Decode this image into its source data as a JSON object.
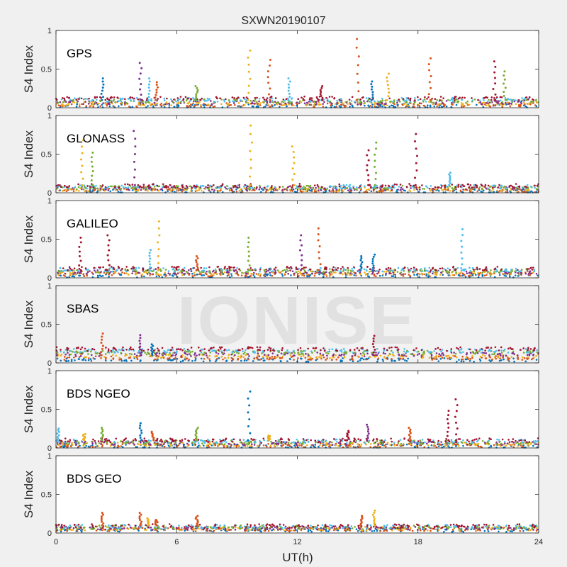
{
  "figure": {
    "title": "SXWN20190107",
    "xlabel": "UT(h)",
    "watermark": "IONISE",
    "background": "#f0f0f0",
    "axes_background": "#ffffff"
  },
  "chart_data": [
    {
      "type": "scatter",
      "label": "GPS",
      "ylabel": "S4 Index",
      "xlim": [
        0,
        24
      ],
      "ylim": [
        0,
        1
      ],
      "xticks": [
        0,
        6,
        12,
        18,
        24
      ],
      "xticklabels": [
        "",
        "",
        "",
        "",
        ""
      ],
      "yticks": [
        0,
        0.5,
        1
      ],
      "yticklabels": [
        "0",
        "0.5",
        "1"
      ],
      "grid": false,
      "baseline": [
        0.02,
        0.12
      ],
      "spikes": [
        {
          "x": 2.3,
          "y": 0.38,
          "color": "#0072bd"
        },
        {
          "x": 4.2,
          "y": 0.58,
          "color": "#7e2f8e"
        },
        {
          "x": 4.6,
          "y": 0.38,
          "color": "#4dbeee"
        },
        {
          "x": 5.0,
          "y": 0.33,
          "color": "#d95319"
        },
        {
          "x": 7.0,
          "y": 0.28,
          "color": "#77ac30"
        },
        {
          "x": 9.6,
          "y": 0.74,
          "color": "#edb120"
        },
        {
          "x": 10.6,
          "y": 0.62,
          "color": "#d95319"
        },
        {
          "x": 11.6,
          "y": 0.38,
          "color": "#4dbeee"
        },
        {
          "x": 13.2,
          "y": 0.28,
          "color": "#a2142f"
        },
        {
          "x": 15.0,
          "y": 0.89,
          "color": "#d95319"
        },
        {
          "x": 15.7,
          "y": 0.34,
          "color": "#0072bd"
        },
        {
          "x": 16.5,
          "y": 0.44,
          "color": "#edb120"
        },
        {
          "x": 18.6,
          "y": 0.64,
          "color": "#d95319"
        },
        {
          "x": 21.8,
          "y": 0.6,
          "color": "#a2142f"
        },
        {
          "x": 22.3,
          "y": 0.47,
          "color": "#77ac30"
        }
      ]
    },
    {
      "type": "scatter",
      "label": "GLONASS",
      "ylabel": "S4 Index",
      "xlim": [
        0,
        24
      ],
      "ylim": [
        0,
        1
      ],
      "xticks": [
        0,
        6,
        12,
        18,
        24
      ],
      "xticklabels": [
        "",
        "",
        "",
        "",
        ""
      ],
      "yticks": [
        0,
        0.5,
        1
      ],
      "yticklabels": [
        "0",
        "0.5",
        "1"
      ],
      "grid": false,
      "baseline": [
        0.02,
        0.09
      ],
      "spikes": [
        {
          "x": 1.3,
          "y": 0.68,
          "color": "#edb120"
        },
        {
          "x": 1.8,
          "y": 0.52,
          "color": "#77ac30"
        },
        {
          "x": 3.9,
          "y": 0.8,
          "color": "#7e2f8e"
        },
        {
          "x": 9.7,
          "y": 0.87,
          "color": "#edb120"
        },
        {
          "x": 11.8,
          "y": 0.6,
          "color": "#edb120"
        },
        {
          "x": 15.5,
          "y": 0.55,
          "color": "#a2142f"
        },
        {
          "x": 15.9,
          "y": 0.65,
          "color": "#77ac30"
        },
        {
          "x": 17.9,
          "y": 0.76,
          "color": "#a2142f"
        },
        {
          "x": 19.6,
          "y": 0.26,
          "color": "#4dbeee"
        }
      ]
    },
    {
      "type": "scatter",
      "label": "GALILEO",
      "ylabel": "S4 Index",
      "xlim": [
        0,
        24
      ],
      "ylim": [
        0,
        1
      ],
      "xticks": [
        0,
        6,
        12,
        18,
        24
      ],
      "xticklabels": [
        "",
        "",
        "",
        "",
        ""
      ],
      "yticks": [
        0,
        0.5,
        1
      ],
      "yticklabels": [
        "0",
        "0.5",
        "1"
      ],
      "grid": false,
      "baseline": [
        0.03,
        0.12
      ],
      "spikes": [
        {
          "x": 1.2,
          "y": 0.52,
          "color": "#a2142f"
        },
        {
          "x": 2.6,
          "y": 0.55,
          "color": "#a2142f"
        },
        {
          "x": 4.7,
          "y": 0.36,
          "color": "#4dbeee"
        },
        {
          "x": 5.1,
          "y": 0.73,
          "color": "#edb120"
        },
        {
          "x": 7.0,
          "y": 0.28,
          "color": "#d95319"
        },
        {
          "x": 9.6,
          "y": 0.52,
          "color": "#77ac30"
        },
        {
          "x": 12.2,
          "y": 0.55,
          "color": "#7e2f8e"
        },
        {
          "x": 13.1,
          "y": 0.64,
          "color": "#d95319"
        },
        {
          "x": 15.2,
          "y": 0.28,
          "color": "#0072bd"
        },
        {
          "x": 15.8,
          "y": 0.3,
          "color": "#0072bd"
        },
        {
          "x": 20.2,
          "y": 0.63,
          "color": "#4dbeee"
        }
      ]
    },
    {
      "type": "scatter",
      "label": "SBAS",
      "ylabel": "S4 Index",
      "xlim": [
        0,
        24
      ],
      "ylim": [
        0,
        1
      ],
      "xticks": [
        0,
        6,
        12,
        18,
        24
      ],
      "xticklabels": [
        "",
        "",
        "",
        "",
        ""
      ],
      "yticks": [
        0,
        0.5,
        1
      ],
      "yticklabels": [
        "0",
        "0.5",
        "1"
      ],
      "grid": false,
      "baseline": [
        0.04,
        0.18
      ],
      "spikes": [
        {
          "x": 2.3,
          "y": 0.38,
          "color": "#d95319"
        },
        {
          "x": 4.2,
          "y": 0.36,
          "color": "#7e2f8e"
        },
        {
          "x": 4.8,
          "y": 0.24,
          "color": "#0072bd"
        },
        {
          "x": 15.8,
          "y": 0.35,
          "color": "#a2142f"
        }
      ]
    },
    {
      "type": "scatter",
      "label": "BDS NGEO",
      "ylabel": "S4 Index",
      "xlim": [
        0,
        24
      ],
      "ylim": [
        0,
        1
      ],
      "xticks": [
        0,
        6,
        12,
        18,
        24
      ],
      "xticklabels": [
        "",
        "",
        "",
        "",
        ""
      ],
      "yticks": [
        0,
        0.5,
        1
      ],
      "yticklabels": [
        "0",
        "0.5",
        "1"
      ],
      "grid": false,
      "baseline": [
        0.02,
        0.1
      ],
      "spikes": [
        {
          "x": 0.1,
          "y": 0.25,
          "color": "#4dbeee"
        },
        {
          "x": 1.4,
          "y": 0.18,
          "color": "#edb120"
        },
        {
          "x": 2.3,
          "y": 0.26,
          "color": "#77ac30"
        },
        {
          "x": 4.2,
          "y": 0.32,
          "color": "#0072bd"
        },
        {
          "x": 4.8,
          "y": 0.21,
          "color": "#d95319"
        },
        {
          "x": 7.0,
          "y": 0.26,
          "color": "#77ac30"
        },
        {
          "x": 9.6,
          "y": 0.73,
          "color": "#0072bd"
        },
        {
          "x": 10.6,
          "y": 0.16,
          "color": "#edb120"
        },
        {
          "x": 14.5,
          "y": 0.22,
          "color": "#a2142f"
        },
        {
          "x": 15.5,
          "y": 0.3,
          "color": "#7e2f8e"
        },
        {
          "x": 17.6,
          "y": 0.26,
          "color": "#d95319"
        },
        {
          "x": 19.5,
          "y": 0.48,
          "color": "#a2142f"
        },
        {
          "x": 19.9,
          "y": 0.63,
          "color": "#a2142f"
        }
      ]
    },
    {
      "type": "scatter",
      "label": "BDS GEO",
      "ylabel": "S4 Index",
      "xlim": [
        0,
        24
      ],
      "ylim": [
        0,
        1
      ],
      "xticks": [
        0,
        6,
        12,
        18,
        24
      ],
      "xticklabels": [
        "0",
        "6",
        "12",
        "18",
        "24"
      ],
      "yticks": [
        0,
        0.5,
        1
      ],
      "yticklabels": [
        "0",
        "0.5",
        "1"
      ],
      "grid": false,
      "baseline": [
        0.04,
        0.09
      ],
      "spikes": [
        {
          "x": 2.3,
          "y": 0.26,
          "color": "#d95319"
        },
        {
          "x": 4.2,
          "y": 0.26,
          "color": "#d95319"
        },
        {
          "x": 4.6,
          "y": 0.19,
          "color": "#edb120"
        },
        {
          "x": 5.0,
          "y": 0.17,
          "color": "#d95319"
        },
        {
          "x": 7.0,
          "y": 0.22,
          "color": "#d95319"
        },
        {
          "x": 15.2,
          "y": 0.22,
          "color": "#d95319"
        },
        {
          "x": 15.8,
          "y": 0.29,
          "color": "#edb120"
        }
      ]
    }
  ],
  "palette": [
    "#0072bd",
    "#d95319",
    "#edb120",
    "#7e2f8e",
    "#77ac30",
    "#4dbeee",
    "#a2142f"
  ]
}
